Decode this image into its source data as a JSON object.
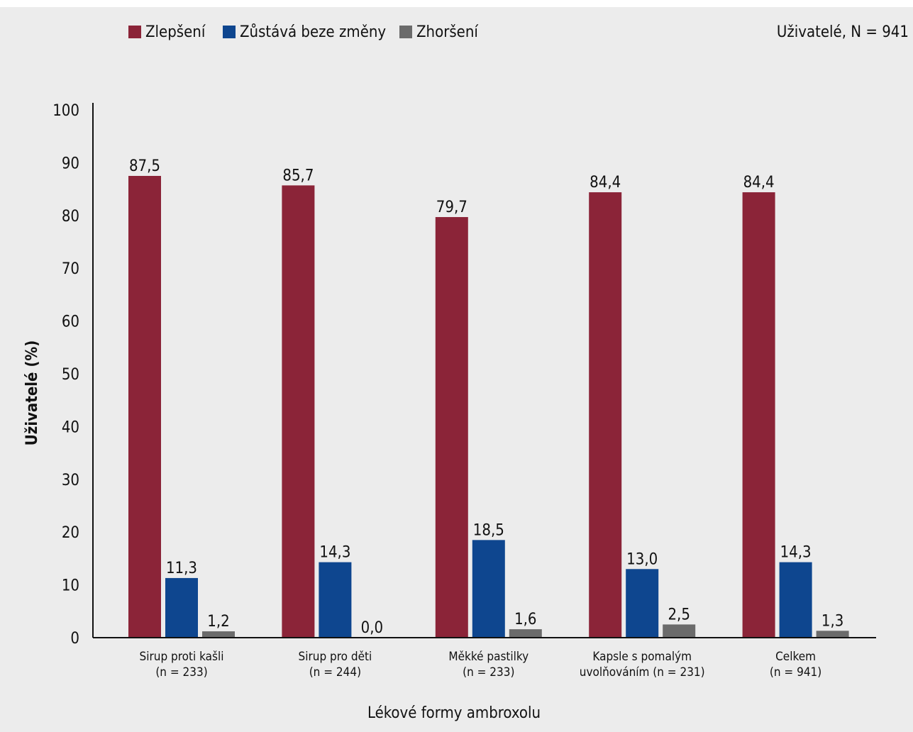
{
  "chart_data": {
    "type": "bar",
    "note": "Uživatelé, N = 941",
    "ylabel": "Uživatelé (%)",
    "xlabel": "Lékové formy ambroxolu",
    "ylim": [
      0,
      100
    ],
    "yticks": [
      0,
      10,
      20,
      30,
      40,
      50,
      60,
      70,
      80,
      90,
      100
    ],
    "grid": false,
    "legend_position": "top-left",
    "categories": [
      [
        "Sirup proti kašli",
        "(n = 233)"
      ],
      [
        "Sirup pro děti",
        "(n = 244)"
      ],
      [
        "Měkké pastilky",
        "(n = 233)"
      ],
      [
        "Kapsle s pomalým",
        "uvolňováním (n = 231)"
      ],
      [
        "Celkem",
        "(n = 941)"
      ]
    ],
    "series": [
      {
        "name": "Zlepšení",
        "color": "#8b2438",
        "values": [
          87.5,
          85.7,
          79.7,
          84.4,
          84.4
        ],
        "labels": [
          "87,5",
          "85,7",
          "79,7",
          "84,4",
          "84,4"
        ]
      },
      {
        "name": "Zůstává beze změny",
        "color": "#0e468f",
        "values": [
          11.3,
          14.3,
          18.5,
          13.0,
          14.3
        ],
        "labels": [
          "11,3",
          "14,3",
          "18,5",
          "13,0",
          "14,3"
        ]
      },
      {
        "name": "Zhoršení",
        "color": "#6b6b6b",
        "values": [
          1.2,
          0.0,
          1.6,
          2.5,
          1.3
        ],
        "labels": [
          "1,2",
          "0,0",
          "1,6",
          "2,5",
          "1,3"
        ]
      }
    ]
  }
}
